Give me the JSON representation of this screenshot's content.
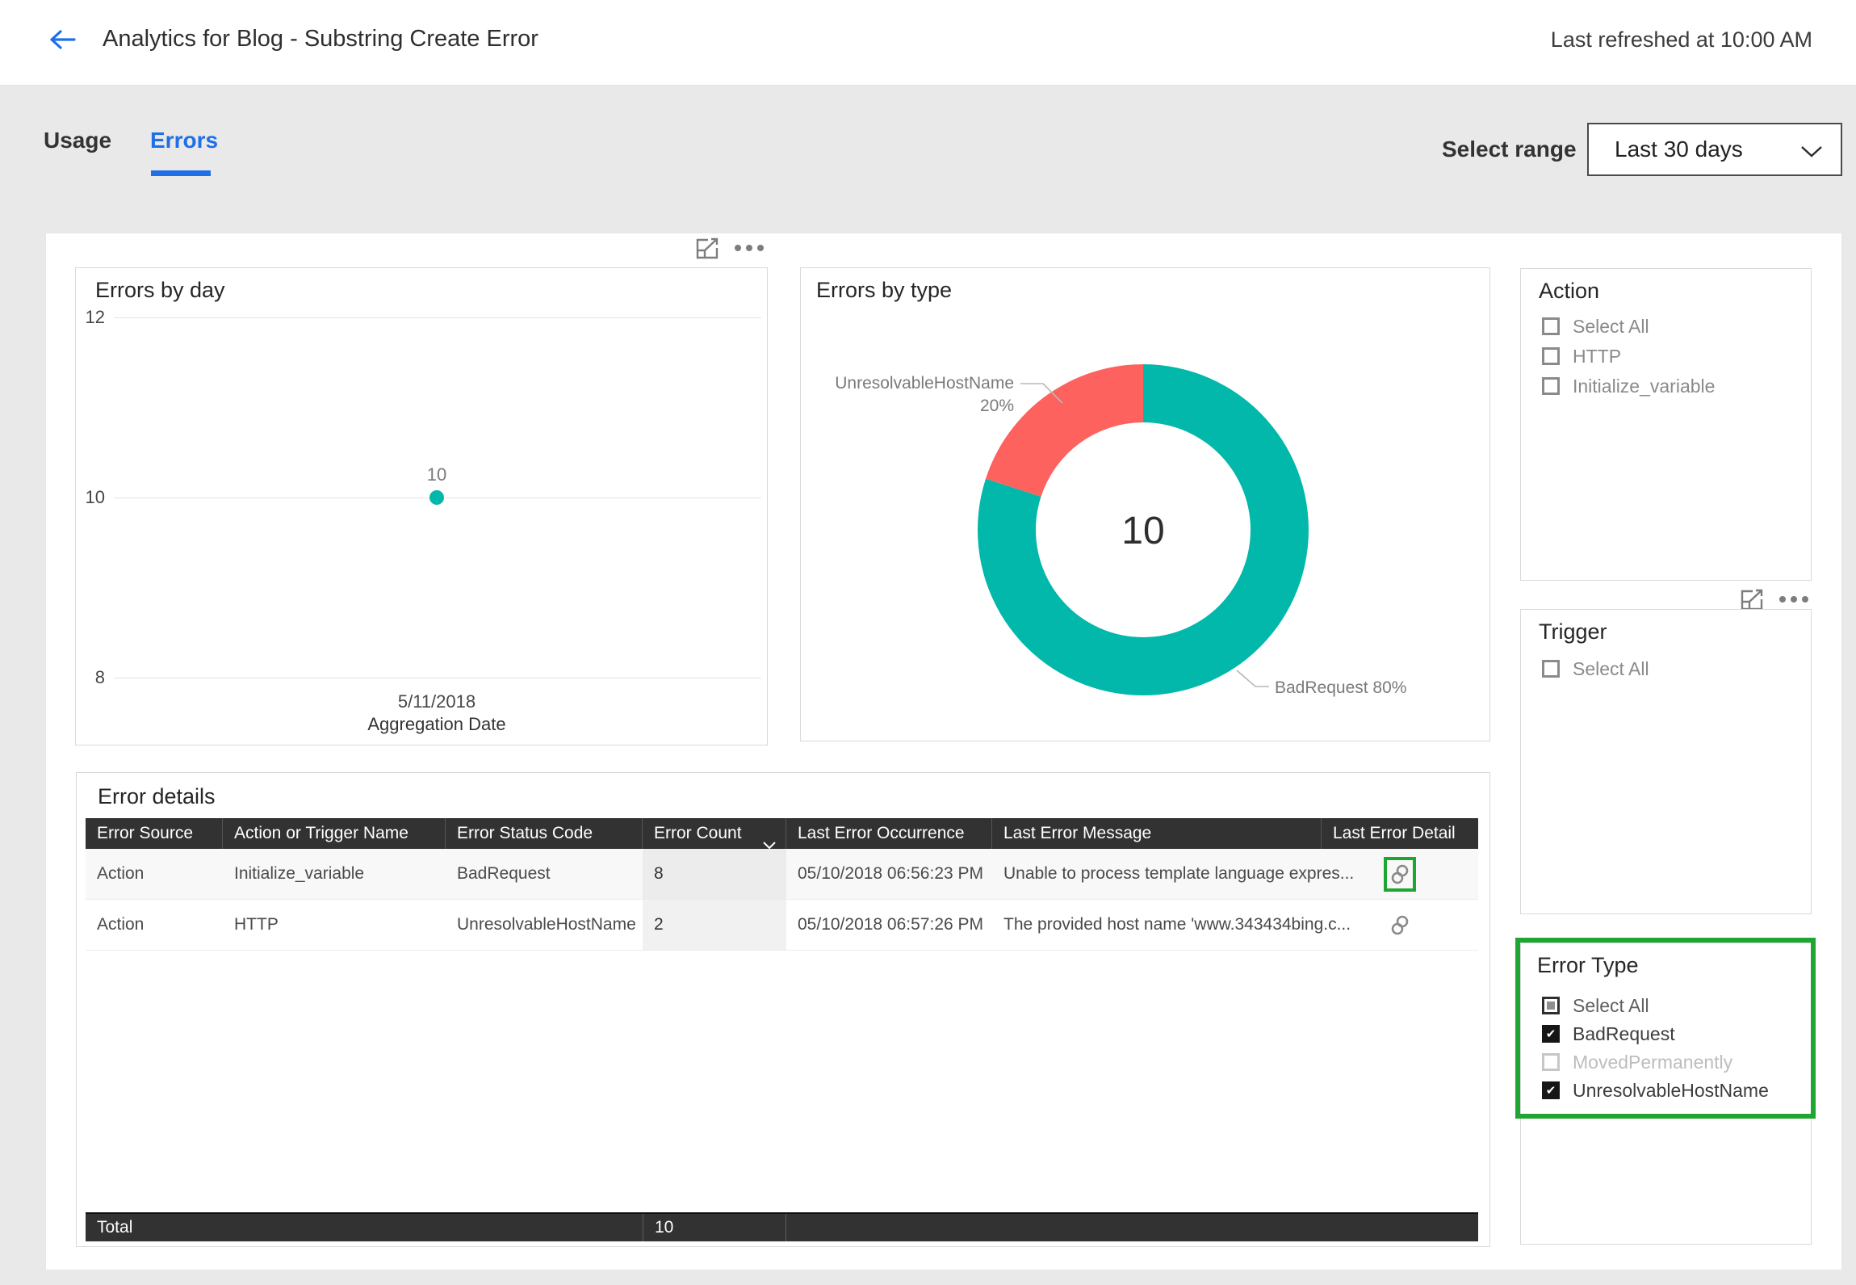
{
  "header": {
    "title": "Analytics for Blog - Substring Create Error",
    "last_refreshed": "Last refreshed at 10:00 AM"
  },
  "toolbar": {
    "tabs": [
      {
        "label": "Usage",
        "active": false
      },
      {
        "label": "Errors",
        "active": true
      }
    ],
    "select_range_label": "Select range",
    "range_value": "Last 30 days"
  },
  "colors": {
    "accent_teal": "#01B8AA",
    "accent_red": "#FD625E",
    "tab_blue": "#1F6FE8",
    "annotation_green": "#21A532",
    "table_header_bg": "#323232"
  },
  "chart_data": [
    {
      "type": "scatter",
      "title": "Errors by day",
      "xlabel": "Aggregation Date",
      "x_tick_labels": [
        "5/11/2018"
      ],
      "yticks": [
        12,
        10,
        8
      ],
      "ylim": [
        8,
        12
      ],
      "grid": true,
      "points": [
        {
          "x": "5/11/2018",
          "y": 10,
          "label": "10",
          "color": "#01B8AA"
        }
      ]
    },
    {
      "type": "donut",
      "title": "Errors by type",
      "center_total": "10",
      "slices": [
        {
          "label": "BadRequest",
          "value": 8,
          "percent": 80,
          "color": "#01B8AA",
          "callout_side": "right",
          "callout_text": "BadRequest 80%"
        },
        {
          "label": "UnresolvableHostName",
          "value": 2,
          "percent": 20,
          "color": "#FD625E",
          "callout_side": "left",
          "callout_lines": [
            "UnresolvableHostName",
            "20%"
          ]
        }
      ]
    }
  ],
  "filters": {
    "action": {
      "title": "Action",
      "items": [
        {
          "label": "Select All",
          "state": "unchecked"
        },
        {
          "label": "HTTP",
          "state": "unchecked"
        },
        {
          "label": "Initialize_variable",
          "state": "unchecked"
        }
      ]
    },
    "trigger": {
      "title": "Trigger",
      "items": [
        {
          "label": "Select All",
          "state": "unchecked"
        }
      ]
    },
    "error_type": {
      "title": "Error Type",
      "highlighted": true,
      "items": [
        {
          "label": "Select All",
          "state": "indeterminate"
        },
        {
          "label": "BadRequest",
          "state": "checked"
        },
        {
          "label": "MovedPermanently",
          "state": "unchecked_disabled"
        },
        {
          "label": "UnresolvableHostName",
          "state": "checked"
        }
      ]
    }
  },
  "error_details": {
    "title": "Error details",
    "columns": [
      "Error Source",
      "Action or Trigger Name",
      "Error Status Code",
      "Error Count",
      "Last Error Occurrence",
      "Last Error Message",
      "Last Error Detail"
    ],
    "sorted_column": "Error Count",
    "rows": [
      {
        "source": "Action",
        "name": "Initialize_variable",
        "code": "BadRequest",
        "count": "8",
        "occurrence": "05/10/2018 06:56:23 PM",
        "message": "Unable to process template language expres...",
        "detail_icon": "link-icon",
        "detail_highlighted": true
      },
      {
        "source": "Action",
        "name": "HTTP",
        "code": "UnresolvableHostName",
        "count": "2",
        "occurrence": "05/10/2018 06:57:26 PM",
        "message": "The provided host name 'www.343434bing.c...",
        "detail_icon": "link-icon",
        "detail_highlighted": false
      }
    ],
    "total_label": "Total",
    "total_count": "10"
  }
}
